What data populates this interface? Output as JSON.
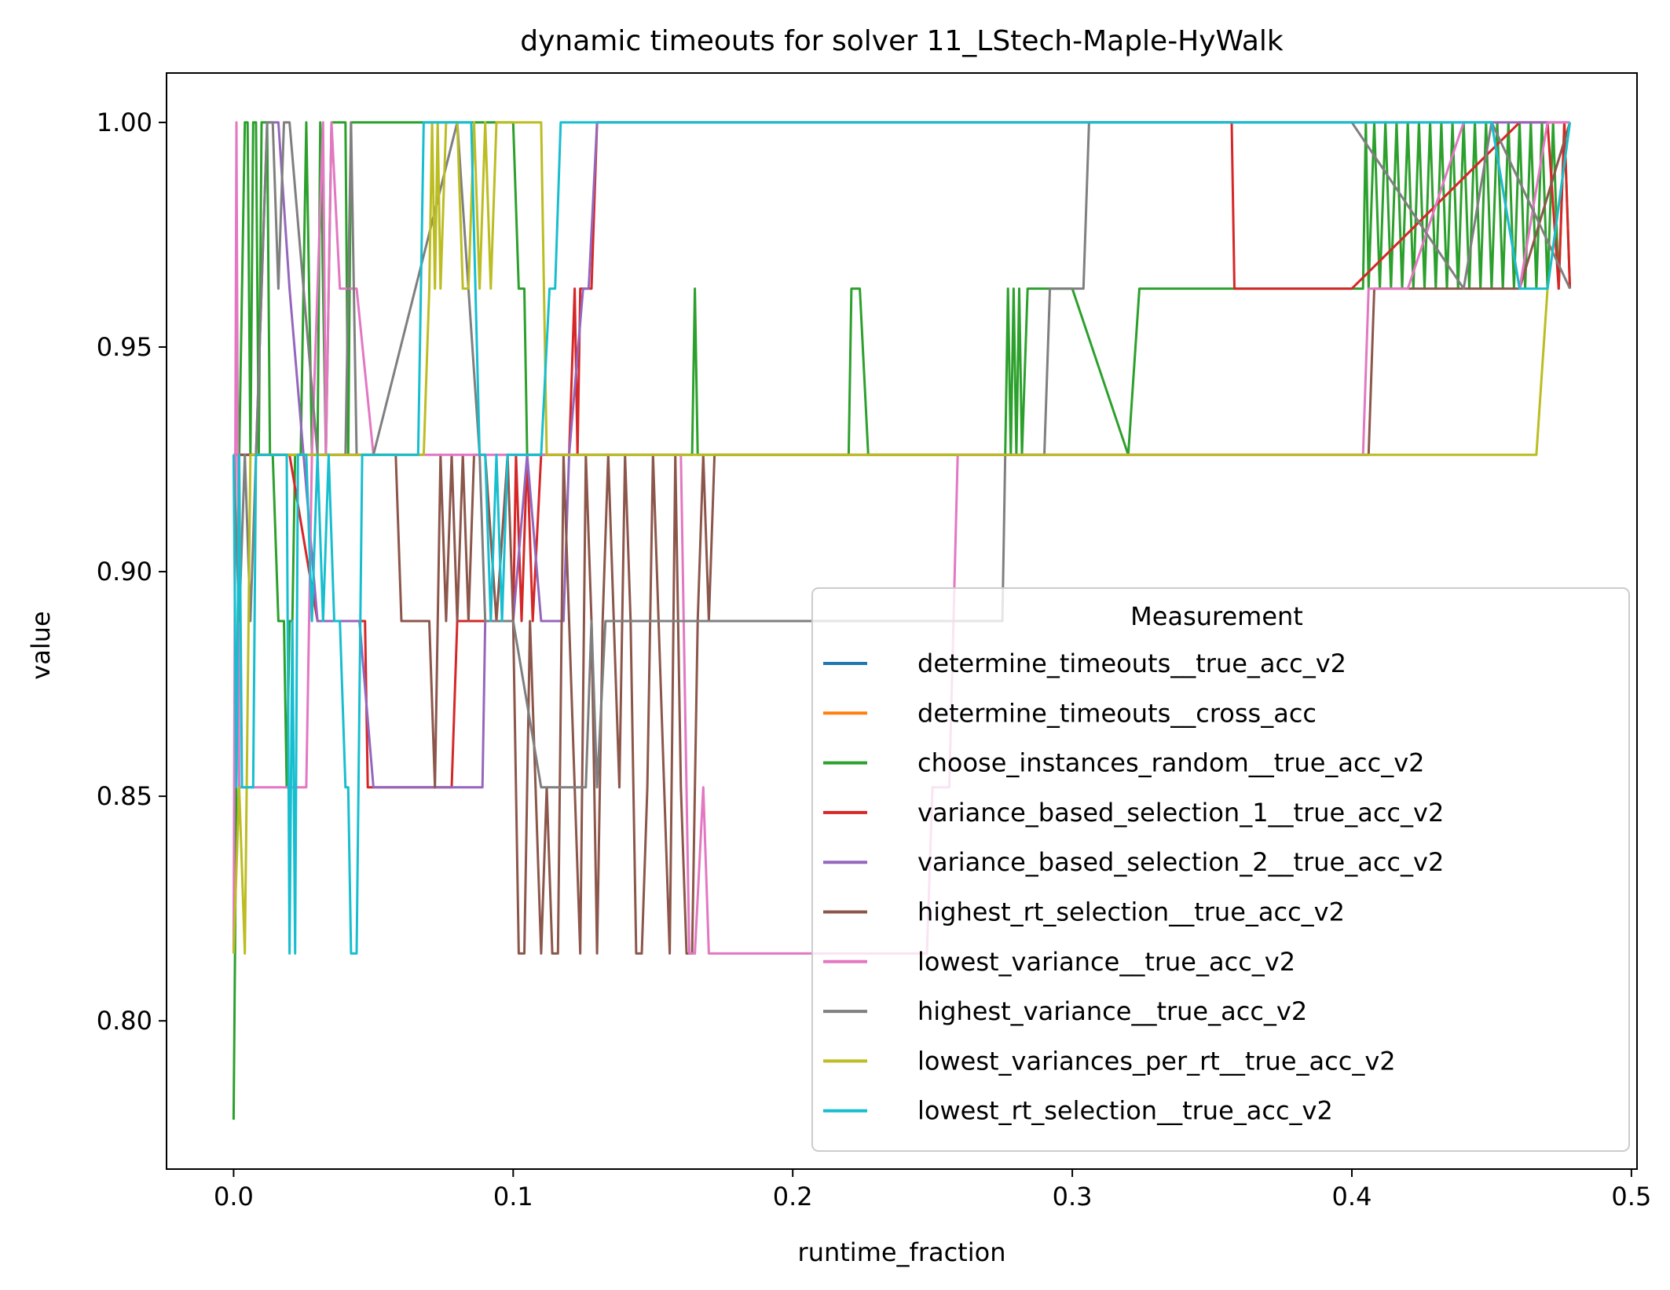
{
  "chart_data": {
    "type": "line",
    "title": "dynamic timeouts for solver 11_LStech-Maple-HyWalk",
    "xlabel": "runtime_fraction",
    "ylabel": "value",
    "xlim": [
      -0.024,
      0.502
    ],
    "ylim": [
      0.767,
      1.011
    ],
    "xticks": [
      0.0,
      0.1,
      0.2,
      0.3,
      0.4,
      0.5
    ],
    "xtick_labels": [
      "0.0",
      "0.1",
      "0.2",
      "0.3",
      "0.4",
      "0.5"
    ],
    "yticks": [
      0.8,
      0.85,
      0.9,
      0.95,
      1.0
    ],
    "ytick_labels": [
      "0.80",
      "0.85",
      "0.90",
      "0.95",
      "1.00"
    ],
    "grid": false,
    "legend": {
      "title": "Measurement",
      "position": "lower right"
    },
    "series": [
      {
        "name": "determine_timeouts__true_acc_v2",
        "color": "#1f77b4",
        "x": [],
        "y": []
      },
      {
        "name": "determine_timeouts__cross_acc",
        "color": "#ff7f0e",
        "x": [],
        "y": []
      },
      {
        "name": "choose_instances_random__true_acc_v2",
        "color": "#2ca02c",
        "x": [
          0.0,
          0.002,
          0.004,
          0.005,
          0.006,
          0.007,
          0.008,
          0.009,
          0.01,
          0.012,
          0.013,
          0.014,
          0.016,
          0.018,
          0.019,
          0.02,
          0.021,
          0.022,
          0.024,
          0.026,
          0.028,
          0.03,
          0.031,
          0.033,
          0.035,
          0.037,
          0.04,
          0.041,
          0.042,
          0.044,
          0.046,
          0.05,
          0.06,
          0.07,
          0.08,
          0.09,
          0.1,
          0.102,
          0.104,
          0.105,
          0.11,
          0.12,
          0.15,
          0.164,
          0.165,
          0.166,
          0.2,
          0.22,
          0.221,
          0.224,
          0.227,
          0.24,
          0.27,
          0.276,
          0.277,
          0.278,
          0.279,
          0.28,
          0.281,
          0.282,
          0.284,
          0.285,
          0.286,
          0.3,
          0.32,
          0.324,
          0.35,
          0.4,
          0.404,
          0.405,
          0.406,
          0.408,
          0.41,
          0.412,
          0.414,
          0.416,
          0.418,
          0.42,
          0.422,
          0.424,
          0.426,
          0.428,
          0.43,
          0.432,
          0.434,
          0.436,
          0.438,
          0.44,
          0.442,
          0.444,
          0.446,
          0.448,
          0.45,
          0.452,
          0.454,
          0.456,
          0.458,
          0.46,
          0.462,
          0.464,
          0.466,
          0.468,
          0.47,
          0.472,
          0.474,
          0.476,
          0.478
        ],
        "y": [
          0.778,
          0.926,
          1.0,
          1.0,
          0.926,
          1.0,
          1.0,
          0.926,
          1.0,
          1.0,
          0.926,
          0.926,
          0.889,
          0.889,
          0.852,
          0.889,
          0.889,
          0.926,
          0.926,
          1.0,
          0.926,
          0.926,
          1.0,
          0.926,
          1.0,
          1.0,
          1.0,
          0.926,
          1.0,
          1.0,
          1.0,
          1.0,
          1.0,
          1.0,
          1.0,
          1.0,
          1.0,
          0.963,
          0.963,
          0.926,
          0.926,
          0.926,
          0.926,
          0.926,
          0.963,
          0.926,
          0.926,
          0.926,
          0.963,
          0.963,
          0.926,
          0.926,
          0.926,
          0.926,
          0.963,
          0.926,
          0.963,
          0.926,
          0.963,
          0.926,
          0.963,
          0.963,
          0.963,
          0.963,
          0.926,
          0.963,
          0.963,
          0.963,
          0.963,
          1.0,
          0.963,
          1.0,
          0.963,
          1.0,
          0.963,
          1.0,
          0.963,
          1.0,
          0.963,
          1.0,
          0.963,
          1.0,
          0.963,
          1.0,
          0.963,
          1.0,
          0.963,
          1.0,
          0.963,
          1.0,
          0.963,
          1.0,
          0.963,
          1.0,
          0.963,
          1.0,
          0.963,
          1.0,
          0.963,
          1.0,
          0.963,
          1.0,
          0.963,
          1.0,
          0.963,
          1.0,
          0.963
        ]
      },
      {
        "name": "variance_based_selection_1__true_acc_v2",
        "color": "#d62728",
        "x": [
          0.0,
          0.005,
          0.01,
          0.02,
          0.03,
          0.04,
          0.047,
          0.048,
          0.06,
          0.078,
          0.08,
          0.081,
          0.09,
          0.1,
          0.101,
          0.103,
          0.105,
          0.107,
          0.11,
          0.12,
          0.122,
          0.123,
          0.124,
          0.126,
          0.128,
          0.13,
          0.131,
          0.2,
          0.3,
          0.357,
          0.358,
          0.4,
          0.46,
          0.47,
          0.474,
          0.476,
          0.478
        ],
        "y": [
          0.926,
          0.926,
          0.926,
          0.926,
          0.889,
          0.889,
          0.889,
          0.852,
          0.852,
          0.852,
          0.889,
          0.889,
          0.889,
          0.889,
          0.926,
          0.889,
          0.926,
          0.889,
          0.926,
          0.926,
          0.963,
          0.926,
          0.963,
          0.963,
          0.963,
          1.0,
          1.0,
          1.0,
          1.0,
          1.0,
          0.963,
          0.963,
          1.0,
          1.0,
          0.963,
          1.0,
          0.963
        ]
      },
      {
        "name": "variance_based_selection_2__true_acc_v2",
        "color": "#9467bd",
        "x": [
          0.0,
          0.004,
          0.008,
          0.012,
          0.016,
          0.02,
          0.03,
          0.045,
          0.05,
          0.08,
          0.089,
          0.09,
          0.1,
          0.105,
          0.11,
          0.118,
          0.12,
          0.125,
          0.127,
          0.13,
          0.15,
          0.3,
          0.45,
          0.478
        ],
        "y": [
          0.926,
          0.926,
          0.926,
          1.0,
          1.0,
          0.963,
          0.889,
          0.889,
          0.852,
          0.852,
          0.852,
          0.889,
          0.889,
          0.926,
          0.889,
          0.889,
          0.926,
          0.963,
          0.963,
          1.0,
          1.0,
          1.0,
          1.0,
          1.0
        ]
      },
      {
        "name": "highest_rt_selection__true_acc_v2",
        "color": "#8c564b",
        "x": [
          0.0,
          0.05,
          0.058,
          0.06,
          0.062,
          0.066,
          0.07,
          0.072,
          0.074,
          0.076,
          0.078,
          0.08,
          0.082,
          0.084,
          0.086,
          0.088,
          0.09,
          0.094,
          0.098,
          0.1,
          0.102,
          0.104,
          0.106,
          0.108,
          0.11,
          0.112,
          0.114,
          0.116,
          0.118,
          0.12,
          0.122,
          0.124,
          0.126,
          0.128,
          0.13,
          0.132,
          0.134,
          0.136,
          0.138,
          0.14,
          0.142,
          0.144,
          0.146,
          0.148,
          0.15,
          0.152,
          0.154,
          0.156,
          0.158,
          0.16,
          0.162,
          0.164,
          0.166,
          0.168,
          0.17,
          0.172,
          0.174,
          0.3,
          0.404,
          0.406,
          0.408,
          0.42,
          0.46,
          0.478
        ],
        "y": [
          0.926,
          0.926,
          0.926,
          0.889,
          0.889,
          0.889,
          0.889,
          0.852,
          0.926,
          0.889,
          0.926,
          0.889,
          0.926,
          0.889,
          0.926,
          0.926,
          0.926,
          0.889,
          0.926,
          0.889,
          0.815,
          0.815,
          0.889,
          0.852,
          0.815,
          0.852,
          0.815,
          0.815,
          0.926,
          0.889,
          0.852,
          0.815,
          0.926,
          0.889,
          0.815,
          0.889,
          0.926,
          0.889,
          0.852,
          0.926,
          0.889,
          0.815,
          0.815,
          0.852,
          0.926,
          0.889,
          0.852,
          0.815,
          0.926,
          0.852,
          0.815,
          0.815,
          0.889,
          0.926,
          0.889,
          0.926,
          0.926,
          0.926,
          0.926,
          0.926,
          0.963,
          0.963,
          0.963,
          1.0
        ]
      },
      {
        "name": "lowest_variance__true_acc_v2",
        "color": "#e377c2",
        "x": [
          0.0,
          0.001,
          0.002,
          0.004,
          0.006,
          0.008,
          0.01,
          0.02,
          0.026,
          0.028,
          0.032,
          0.033,
          0.035,
          0.038,
          0.04,
          0.044,
          0.05,
          0.06,
          0.08,
          0.1,
          0.12,
          0.15,
          0.16,
          0.163,
          0.165,
          0.168,
          0.17,
          0.172,
          0.2,
          0.248,
          0.25,
          0.252,
          0.256,
          0.259,
          0.3,
          0.4,
          0.404,
          0.406,
          0.41,
          0.42,
          0.44,
          0.45,
          0.46,
          0.47,
          0.478
        ],
        "y": [
          0.815,
          1.0,
          0.852,
          0.852,
          0.852,
          0.852,
          0.852,
          0.852,
          0.852,
          0.926,
          1.0,
          0.926,
          1.0,
          0.963,
          0.963,
          0.963,
          0.926,
          0.926,
          0.926,
          0.926,
          0.926,
          0.926,
          0.926,
          0.815,
          0.815,
          0.852,
          0.815,
          0.815,
          0.815,
          0.815,
          0.852,
          0.852,
          0.852,
          0.926,
          0.926,
          0.926,
          0.926,
          0.963,
          0.963,
          0.963,
          1.0,
          1.0,
          0.963,
          1.0,
          1.0
        ]
      },
      {
        "name": "highest_variance__true_acc_v2",
        "color": "#7f7f7f",
        "x": [
          0.0,
          0.002,
          0.004,
          0.006,
          0.008,
          0.01,
          0.012,
          0.014,
          0.016,
          0.018,
          0.02,
          0.03,
          0.04,
          0.042,
          0.044,
          0.05,
          0.08,
          0.088,
          0.09,
          0.1,
          0.11,
          0.12,
          0.126,
          0.128,
          0.13,
          0.133,
          0.15,
          0.2,
          0.25,
          0.275,
          0.276,
          0.28,
          0.29,
          0.292,
          0.3,
          0.304,
          0.306,
          0.4,
          0.44,
          0.45,
          0.478
        ],
        "y": [
          0.926,
          0.889,
          0.926,
          0.889,
          0.926,
          0.963,
          1.0,
          1.0,
          0.963,
          1.0,
          1.0,
          0.926,
          0.926,
          1.0,
          0.926,
          0.926,
          1.0,
          0.926,
          0.889,
          0.889,
          0.852,
          0.852,
          0.852,
          0.889,
          0.852,
          0.889,
          0.889,
          0.889,
          0.889,
          0.889,
          0.926,
          0.926,
          0.926,
          0.963,
          0.963,
          0.963,
          1.0,
          1.0,
          0.963,
          1.0,
          0.963
        ]
      },
      {
        "name": "lowest_variances_per_rt__true_acc_v2",
        "color": "#bcbd22",
        "x": [
          0.0,
          0.002,
          0.004,
          0.006,
          0.008,
          0.02,
          0.04,
          0.068,
          0.07,
          0.071,
          0.072,
          0.073,
          0.074,
          0.076,
          0.08,
          0.082,
          0.084,
          0.086,
          0.088,
          0.09,
          0.092,
          0.094,
          0.096,
          0.1,
          0.11,
          0.112,
          0.114,
          0.15,
          0.2,
          0.3,
          0.4,
          0.466,
          0.47,
          0.478
        ],
        "y": [
          0.815,
          0.852,
          0.815,
          0.926,
          0.926,
          0.926,
          0.926,
          0.926,
          0.963,
          1.0,
          0.963,
          1.0,
          0.963,
          1.0,
          1.0,
          0.963,
          0.963,
          1.0,
          0.963,
          1.0,
          0.963,
          1.0,
          1.0,
          1.0,
          1.0,
          0.926,
          0.926,
          0.926,
          0.926,
          0.926,
          0.926,
          0.926,
          0.963,
          1.0
        ]
      },
      {
        "name": "lowest_rt_selection__true_acc_v2",
        "color": "#17becf",
        "x": [
          0.0,
          0.001,
          0.002,
          0.003,
          0.005,
          0.007,
          0.008,
          0.01,
          0.015,
          0.019,
          0.02,
          0.021,
          0.022,
          0.023,
          0.024,
          0.025,
          0.026,
          0.028,
          0.03,
          0.032,
          0.034,
          0.036,
          0.038,
          0.04,
          0.041,
          0.042,
          0.044,
          0.046,
          0.047,
          0.05,
          0.06,
          0.066,
          0.068,
          0.07,
          0.08,
          0.085,
          0.088,
          0.09,
          0.092,
          0.094,
          0.096,
          0.098,
          0.1,
          0.11,
          0.113,
          0.115,
          0.117,
          0.12,
          0.2,
          0.3,
          0.4,
          0.45,
          0.46,
          0.47,
          0.478
        ],
        "y": [
          0.926,
          0.852,
          0.926,
          0.852,
          0.852,
          0.852,
          0.926,
          0.926,
          0.926,
          0.926,
          0.815,
          0.889,
          0.815,
          0.926,
          0.926,
          0.926,
          0.926,
          0.889,
          0.926,
          0.889,
          0.926,
          0.889,
          0.889,
          0.852,
          0.852,
          0.815,
          0.815,
          0.926,
          0.926,
          0.926,
          0.926,
          0.926,
          1.0,
          1.0,
          1.0,
          1.0,
          0.926,
          0.926,
          0.889,
          0.926,
          0.889,
          0.926,
          0.926,
          0.926,
          0.963,
          0.963,
          1.0,
          1.0,
          1.0,
          1.0,
          1.0,
          1.0,
          0.963,
          0.963,
          1.0
        ]
      }
    ]
  }
}
